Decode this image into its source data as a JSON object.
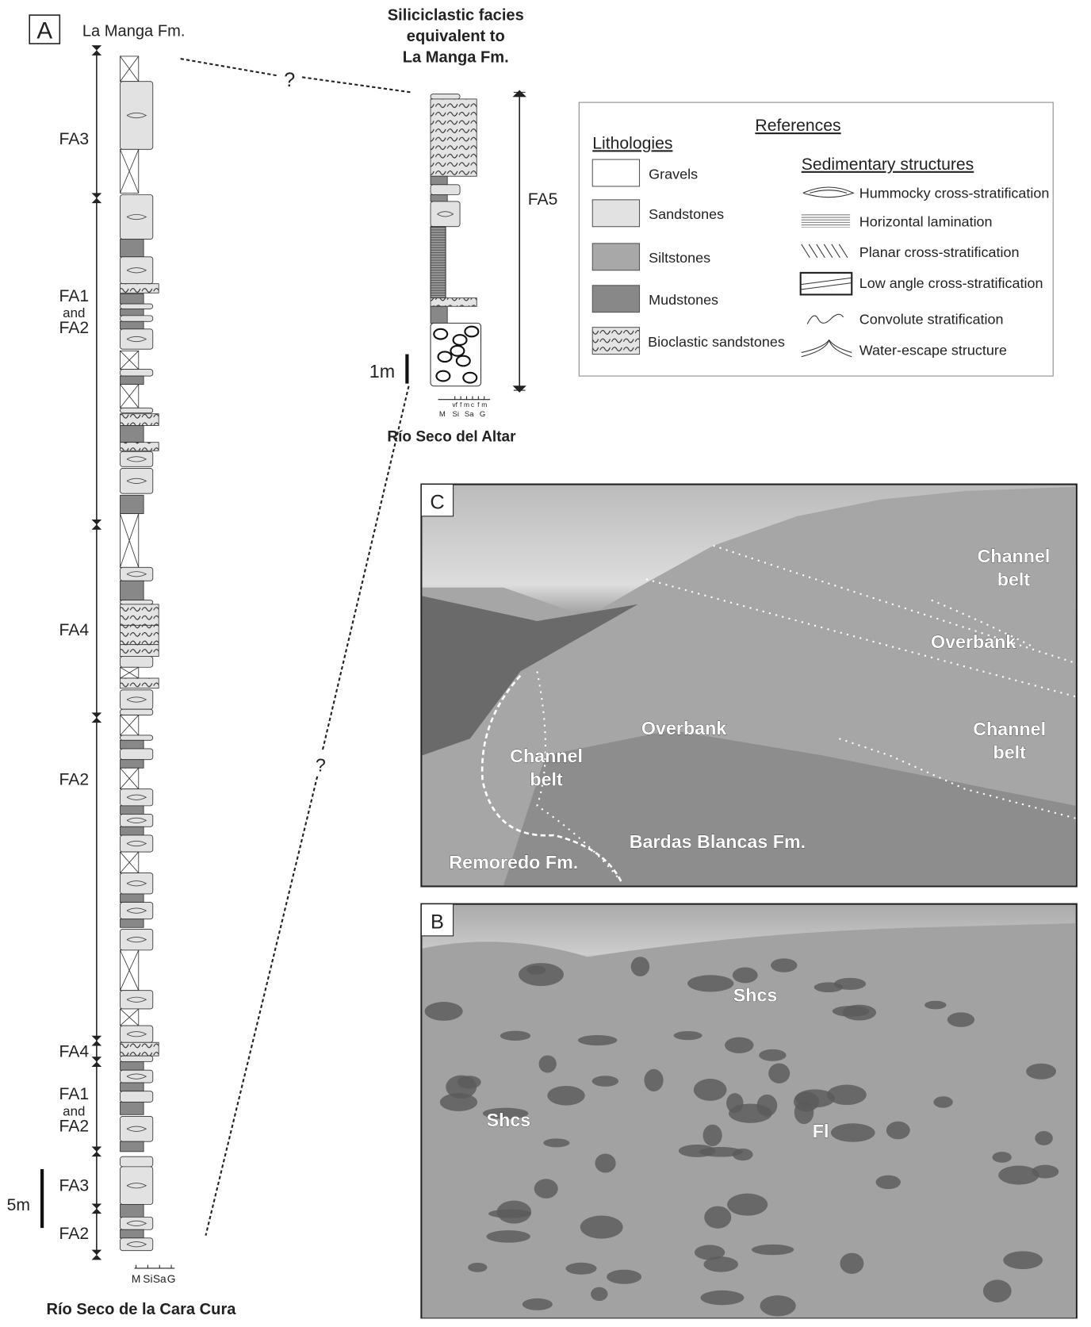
{
  "panel_a": {
    "label": "A",
    "top_unit": "La Manga Fm.",
    "facies": [
      [
        "FA3"
      ],
      [
        "FA1",
        "and",
        "FA2"
      ],
      [
        "FA4"
      ],
      [
        "FA2"
      ],
      [
        "FA4"
      ],
      [
        "FA1",
        "and",
        "FA2"
      ],
      [
        "FA3"
      ],
      [
        "FA2"
      ]
    ],
    "scale": "5m",
    "grain_scale": [
      "M",
      "Si",
      "Sa",
      "G"
    ],
    "section_name": "Río Seco de la Cara Cura"
  },
  "section_2": {
    "title": [
      "Siliciclastic facies",
      "equivalent to",
      "La Manga Fm."
    ],
    "facies": "FA5",
    "scale": "1m",
    "grain_scale": [
      "M",
      "Si",
      "Sa",
      "G"
    ],
    "grain_subscale": [
      "vf",
      "f",
      "m",
      "c",
      "f",
      "m"
    ],
    "section_name": "Río Seco del Altar"
  },
  "correlation": [
    "?",
    "?"
  ],
  "references": {
    "title": "References",
    "lithologies_title": "Lithologies",
    "lithologies": [
      "Gravels",
      "Sandstones",
      "Siltstones",
      "Mudstones",
      "Bioclastic sandstones"
    ],
    "structures_title": "Sedimentary structures",
    "structures": [
      "Hummocky cross-stratification",
      "Horizontal lamination",
      "Planar cross-stratification",
      "Low angle cross-stratification",
      "Convolute stratification",
      "Water-escape structure"
    ]
  },
  "panel_c": {
    "label": "C",
    "annotations": [
      "Channel belt",
      "Overbank",
      "Overbank",
      "Channel belt",
      "Channel belt",
      "Bardas Blancas Fm.",
      "Remoredo Fm."
    ]
  },
  "panel_b": {
    "label": "B",
    "annotations": [
      "Shcs",
      "Shcs",
      "Fl"
    ]
  }
}
